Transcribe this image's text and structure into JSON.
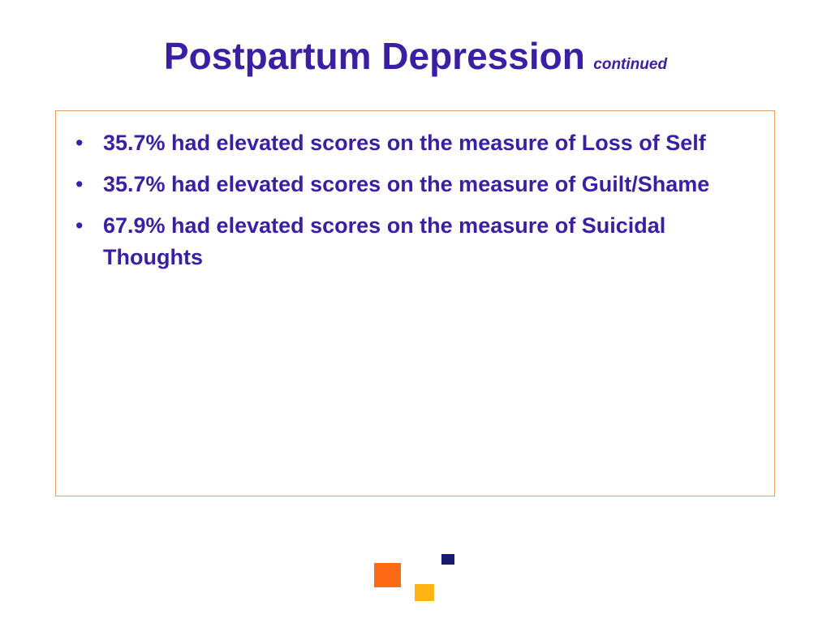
{
  "title": {
    "main": "Postpartum Depression",
    "sub": "continued"
  },
  "bullets": [
    {
      "marker": "•",
      "text": "35.7% had elevated scores on the measure of Loss of Self"
    },
    {
      "marker": "•",
      "text": "35.7% had elevated scores on the measure of Guilt/Shame"
    },
    {
      "marker": "•",
      "text": "67.9% had elevated scores on the measure of Suicidal Thoughts"
    }
  ],
  "colors": {
    "title": "#3b1fa3",
    "text": "#3b1fa3",
    "box_border": "#e0a070",
    "square_orange": "#ff6a14",
    "square_yellow": "#ffb612",
    "square_navy": "#1a1a70"
  }
}
